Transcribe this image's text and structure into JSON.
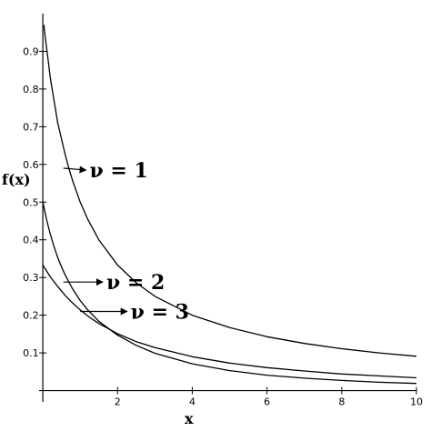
{
  "chart_data": {
    "type": "line",
    "title": "",
    "xlabel": "x",
    "ylabel": "f(x)",
    "xlim": [
      -0.1,
      10
    ],
    "ylim": [
      -0.03,
      1.0
    ],
    "grid": false,
    "legend": "none",
    "x_ticks": [
      {
        "value": 2,
        "label": "2"
      },
      {
        "value": 4,
        "label": "4"
      },
      {
        "value": 6,
        "label": "6"
      },
      {
        "value": 8,
        "label": "8"
      },
      {
        "value": 10,
        "label": "10"
      }
    ],
    "y_ticks": [
      {
        "value": 0.1,
        "label": "0.1"
      },
      {
        "value": 0.2,
        "label": "0.2"
      },
      {
        "value": 0.3,
        "label": "0.3"
      },
      {
        "value": 0.4,
        "label": "0.4"
      },
      {
        "value": 0.5,
        "label": "0.5"
      },
      {
        "value": 0.6,
        "label": "0.6"
      },
      {
        "value": 0.7,
        "label": "0.7"
      },
      {
        "value": 0.8,
        "label": "0.8"
      },
      {
        "value": 0.9,
        "label": "0.9"
      }
    ],
    "line_color": "#000000",
    "series": [
      {
        "x": [
          0.03,
          0.06,
          0.1,
          0.15,
          0.2,
          0.3,
          0.4,
          0.5,
          0.6,
          0.7,
          0.8,
          1,
          1.2,
          1.5,
          2,
          2.5,
          3,
          4,
          5,
          6,
          7,
          8,
          9,
          10
        ],
        "y": [
          0.97,
          0.94,
          0.91,
          0.87,
          0.83,
          0.77,
          0.71,
          0.667,
          0.625,
          0.588,
          0.556,
          0.5,
          0.455,
          0.4,
          0.333,
          0.286,
          0.25,
          0.2,
          0.167,
          0.143,
          0.125,
          0.111,
          0.1,
          0.091
        ]
      },
      {
        "x": [
          0,
          0.1,
          0.2,
          0.3,
          0.4,
          0.5,
          0.6,
          0.8,
          1,
          1.2,
          1.5,
          2,
          2.5,
          3,
          4,
          5,
          6,
          7,
          8,
          9,
          10
        ],
        "y": [
          0.5,
          0.454,
          0.415,
          0.382,
          0.353,
          0.328,
          0.306,
          0.269,
          0.239,
          0.214,
          0.184,
          0.147,
          0.12,
          0.099,
          0.071,
          0.053,
          0.041,
          0.033,
          0.027,
          0.022,
          0.019
        ]
      },
      {
        "x": [
          0,
          0.2,
          0.4,
          0.6,
          0.8,
          1,
          1.2,
          1.5,
          2,
          2.5,
          3,
          4,
          5,
          6,
          7,
          8,
          9,
          10
        ],
        "y": [
          0.333,
          0.302,
          0.276,
          0.252,
          0.232,
          0.214,
          0.198,
          0.178,
          0.151,
          0.13,
          0.114,
          0.09,
          0.073,
          0.061,
          0.052,
          0.044,
          0.039,
          0.034
        ]
      }
    ],
    "annotations": [
      {
        "text": "ν = 1",
        "x": 0.55,
        "y": 0.59,
        "text_x": 1.25,
        "text_y": 0.585
      },
      {
        "text": "ν = 2",
        "x": 0.55,
        "y": 0.288,
        "text_x": 1.7,
        "text_y": 0.288
      },
      {
        "text": "ν = 3",
        "x": 1.0,
        "y": 0.21,
        "text_x": 2.35,
        "text_y": 0.21
      }
    ]
  }
}
